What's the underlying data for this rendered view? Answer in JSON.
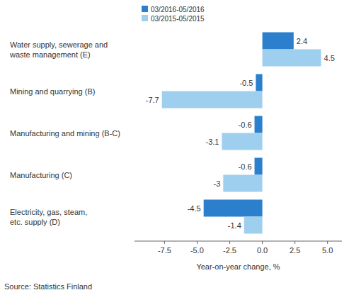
{
  "chart_data": {
    "type": "bar",
    "orientation": "horizontal",
    "categories": [
      "Water supply, sewerage and\nwaste management (E)",
      "Mining and quarrying (B)",
      "Manufacturing and mining (B-C)",
      "Manufacturing (C)",
      "Electricity, gas, steam,\netc. supply (D)"
    ],
    "series": [
      {
        "name": "03/2016-05/2016",
        "color": "#2b7fcc",
        "values": [
          2.4,
          -0.5,
          -0.6,
          -0.6,
          -4.5
        ]
      },
      {
        "name": "03/2015-05/2015",
        "color": "#9fcfee",
        "values": [
          4.5,
          -7.7,
          -3.1,
          -3.0,
          -1.4
        ]
      }
    ],
    "xlabel": "Year-on-year change, %",
    "xlim": [
      -9.8,
      6.1
    ],
    "xticks": [
      -7.5,
      {
        "value": -5,
        "label": "-5.0"
      },
      -2.5,
      {
        "value": 0,
        "label": "0.0"
      },
      2.5,
      {
        "value": 5,
        "label": "5.0"
      }
    ],
    "grid": false,
    "data_labels": true,
    "legend": "top",
    "source": "Source: Statistics Finland"
  }
}
